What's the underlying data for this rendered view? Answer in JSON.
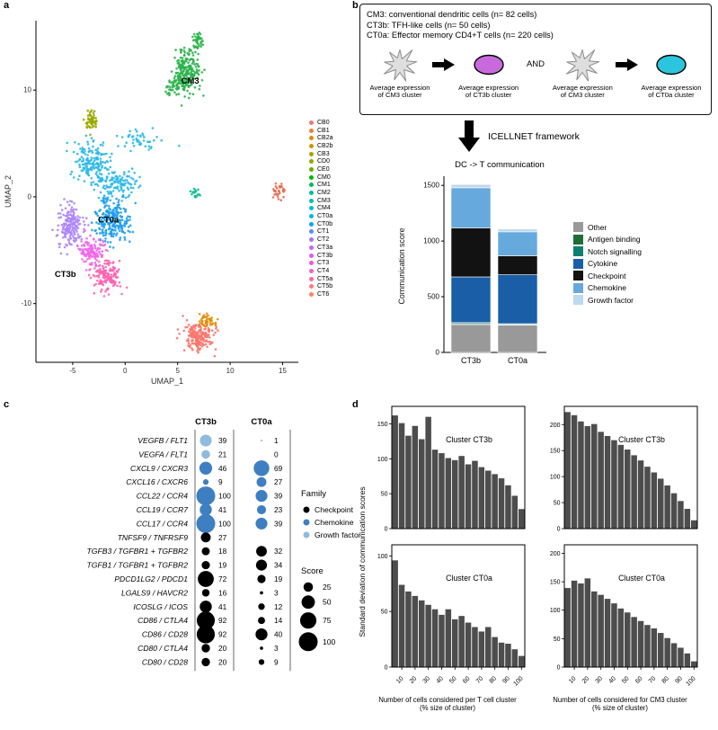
{
  "figure": {
    "panel_labels": {
      "a": "a",
      "b": "b",
      "c": "c",
      "d": "d"
    }
  },
  "panel_b": {
    "info_lines": [
      "CM3: conventional dendritic cells (n= 82 cells)",
      "CT3b: TFH-like cells (n= 50 cells)",
      "CT0a: Effector memory CD4+T cells (n= 220 cells)"
    ],
    "flow": [
      {
        "type": "cell",
        "label": "Average expression of CM3 cluster"
      },
      {
        "type": "arrow"
      },
      {
        "type": "ellipse",
        "color": "#C86ADB",
        "label": "Average expression of CT3b cluster"
      },
      {
        "type": "and",
        "text": "AND"
      },
      {
        "type": "cell",
        "label": "Average expression of CM3 cluster"
      },
      {
        "type": "arrow"
      },
      {
        "type": "ellipse",
        "color": "#2BC6DE",
        "label": "Average expression of CT0a cluster"
      }
    ],
    "framework_label": "ICELLNET framework"
  },
  "chart_data": [
    {
      "id": "umap",
      "type": "scatter",
      "xlabel": "UMAP_1",
      "ylabel": "UMAP_2",
      "xlim": [
        -8.5,
        16.5
      ],
      "ylim": [
        -15.5,
        16.5
      ],
      "x_ticks": [
        -5,
        0,
        5,
        10,
        15
      ],
      "y_ticks": [
        -10,
        0,
        10
      ],
      "annotations": [
        {
          "text": "CM3",
          "x": 6.2,
          "y": 10.6
        },
        {
          "text": "CT0a",
          "x": -1.6,
          "y": -2.4
        },
        {
          "text": "CT3b",
          "x": -5.7,
          "y": -7.5
        }
      ],
      "legend": [
        {
          "label": "CB0",
          "color": "#F8766D"
        },
        {
          "label": "CB1",
          "color": "#EC8239"
        },
        {
          "label": "CB2a",
          "color": "#DD8D00"
        },
        {
          "label": "CB2b",
          "color": "#C99800"
        },
        {
          "label": "CB3",
          "color": "#B0A100"
        },
        {
          "label": "CD0",
          "color": "#8FA900"
        },
        {
          "label": "CE0",
          "color": "#62B100"
        },
        {
          "label": "CM0",
          "color": "#00B702"
        },
        {
          "label": "CM1",
          "color": "#00BC5C"
        },
        {
          "label": "CM2",
          "color": "#00BF8C"
        },
        {
          "label": "CM3",
          "color": "#00C0B4"
        },
        {
          "label": "CM4",
          "color": "#00BDD4"
        },
        {
          "label": "CT0a",
          "color": "#00B5EC"
        },
        {
          "label": "CT0b",
          "color": "#00A7FD"
        },
        {
          "label": "CT1",
          "color": "#5E8BFF"
        },
        {
          "label": "CT2",
          "color": "#9C77FF"
        },
        {
          "label": "CT3a",
          "color": "#C763FF"
        },
        {
          "label": "CT3b",
          "color": "#E45BF1"
        },
        {
          "label": "CT3",
          "color": "#F356DC"
        },
        {
          "label": "CT4",
          "color": "#FC5DC1"
        },
        {
          "label": "CT5a",
          "color": "#FF69A2"
        },
        {
          "label": "CT5b",
          "color": "#FF7782"
        },
        {
          "label": "CT6",
          "color": "#FF8162"
        }
      ],
      "cluster_blobs": [
        {
          "name": "cm3-main",
          "color": "#2BB34B",
          "cx": 5.8,
          "cy": 11.8,
          "rx": 1.15,
          "ry": 1.8,
          "n": 230
        },
        {
          "name": "cm3-top",
          "color": "#2BB34B",
          "cx": 6.9,
          "cy": 14.6,
          "rx": 0.55,
          "ry": 0.75,
          "n": 40
        },
        {
          "name": "cm3-tail",
          "color": "#2BB34B",
          "cx": 4.6,
          "cy": 10.3,
          "rx": 0.8,
          "ry": 0.7,
          "n": 35
        },
        {
          "name": "olive-left",
          "color": "#9AA800",
          "cx": -3.3,
          "cy": 7.1,
          "rx": 0.55,
          "ry": 0.8,
          "n": 60
        },
        {
          "name": "sky-upper",
          "color": "#2BB8E8",
          "cx": -3.2,
          "cy": 3.2,
          "rx": 1.7,
          "ry": 1.7,
          "n": 170
        },
        {
          "name": "sky-mid",
          "color": "#2BB8E8",
          "cx": -0.9,
          "cy": 1.2,
          "rx": 1.9,
          "ry": 1.3,
          "n": 120
        },
        {
          "name": "sky-trail",
          "color": "#2BB8E8",
          "cx": 1.6,
          "cy": 5.3,
          "rx": 1.9,
          "ry": 1.1,
          "n": 45
        },
        {
          "name": "ct0a-blue",
          "color": "#1E9EF0",
          "cx": -1.2,
          "cy": -2.2,
          "rx": 1.5,
          "ry": 1.9,
          "n": 240
        },
        {
          "name": "ct3b-purple",
          "color": "#AD85FB",
          "cx": -5.2,
          "cy": -2.8,
          "rx": 1.05,
          "ry": 1.9,
          "n": 190
        },
        {
          "name": "magenta",
          "color": "#EF67E8",
          "cx": -3.2,
          "cy": -5.2,
          "rx": 1.0,
          "ry": 1.3,
          "n": 130
        },
        {
          "name": "pink-low",
          "color": "#FF63B0",
          "cx": -1.7,
          "cy": -7.4,
          "rx": 1.15,
          "ry": 1.35,
          "n": 150
        },
        {
          "name": "teal-small",
          "color": "#00BD8C",
          "cx": 6.7,
          "cy": 0.3,
          "rx": 0.4,
          "ry": 0.4,
          "n": 16
        },
        {
          "name": "orange-right",
          "color": "#E8694F",
          "cx": 14.6,
          "cy": 0.6,
          "rx": 0.5,
          "ry": 0.7,
          "n": 32
        },
        {
          "name": "salmon-bottom",
          "color": "#F8766D",
          "cx": 7.0,
          "cy": -13.0,
          "rx": 1.3,
          "ry": 1.25,
          "n": 190
        },
        {
          "name": "orange-bottom",
          "color": "#E09000",
          "cx": 7.8,
          "cy": -11.6,
          "rx": 0.7,
          "ry": 0.55,
          "n": 40
        }
      ]
    },
    {
      "id": "dc_t_stacked",
      "type": "bar",
      "stacked": true,
      "title": "DC -> T communication",
      "ylabel": "Communication score",
      "categories": [
        "CT3b",
        "CT0a"
      ],
      "ylim": [
        0,
        1550
      ],
      "y_ticks": [
        0,
        500,
        1000,
        1500
      ],
      "series": [
        {
          "name": "Other",
          "color": "#999999",
          "values": [
            250,
            245
          ]
        },
        {
          "name": "Antigen binding",
          "color": "#1E6E34",
          "values": [
            8,
            5
          ]
        },
        {
          "name": "Notch signalling",
          "color": "#0F7F72",
          "values": [
            10,
            8
          ]
        },
        {
          "name": "Cytokine",
          "color": "#1A5EA8",
          "values": [
            410,
            440
          ]
        },
        {
          "name": "Checkpoint",
          "color": "#121212",
          "values": [
            440,
            170
          ]
        },
        {
          "name": "Chemokine",
          "color": "#66A9DC",
          "values": [
            360,
            215
          ]
        },
        {
          "name": "Growth factor",
          "color": "#BFD9EE",
          "values": [
            30,
            25
          ]
        }
      ],
      "legend_order": [
        "Other",
        "Antigen binding",
        "Notch signalling",
        "Cytokine",
        "Checkpoint",
        "Chemokine",
        "Growth factor"
      ]
    },
    {
      "id": "lr_dotplot",
      "type": "scatter",
      "columns": [
        "CT3b",
        "CT0a"
      ],
      "family_legend_title": "Family",
      "families": [
        "Checkpoint",
        "Chemokine",
        "Growth factor"
      ],
      "family_colors": {
        "Checkpoint": "#000000",
        "Chemokine": "#3E7FC1",
        "Growth factor": "#8FBBDF"
      },
      "score_legend_title": "Score",
      "score_legend": [
        25,
        50,
        75,
        100
      ],
      "rows": [
        {
          "pair": "VEGFB / FLT1",
          "family": "Growth factor",
          "values": [
            39,
            1
          ]
        },
        {
          "pair": "VEGFA / FLT1",
          "family": "Growth factor",
          "values": [
            21,
            0
          ]
        },
        {
          "pair": "CXCL9 / CXCR3",
          "family": "Chemokine",
          "values": [
            46,
            69
          ]
        },
        {
          "pair": "CXCL16 / CXCR6",
          "family": "Chemokine",
          "values": [
            9,
            27
          ]
        },
        {
          "pair": "CCL22 / CCR4",
          "family": "Chemokine",
          "values": [
            100,
            39
          ]
        },
        {
          "pair": "CCL19 / CCR7",
          "family": "Chemokine",
          "values": [
            41,
            23
          ]
        },
        {
          "pair": "CCL17 / CCR4",
          "family": "Chemokine",
          "values": [
            100,
            39
          ]
        },
        {
          "pair": "TNFSF9 / TNFRSF9",
          "family": "Checkpoint",
          "values": [
            27,
            null
          ]
        },
        {
          "pair": "TGFB3 / TGFBR1 + TGFBR2",
          "family": "Checkpoint",
          "values": [
            18,
            32
          ]
        },
        {
          "pair": "TGFB1 / TGFBR1 + TGFBR2",
          "family": "Checkpoint",
          "values": [
            19,
            34
          ]
        },
        {
          "pair": "PDCD1LG2 / PDCD1",
          "family": "Checkpoint",
          "values": [
            72,
            19
          ]
        },
        {
          "pair": "LGALS9 / HAVCR2",
          "family": "Checkpoint",
          "values": [
            16,
            3
          ]
        },
        {
          "pair": "ICOSLG / ICOS",
          "family": "Checkpoint",
          "values": [
            41,
            12
          ]
        },
        {
          "pair": "CD86 / CTLA4",
          "family": "Checkpoint",
          "values": [
            92,
            14
          ]
        },
        {
          "pair": "CD86 / CD28",
          "family": "Checkpoint",
          "values": [
            92,
            40
          ]
        },
        {
          "pair": "CD80 / CTLA4",
          "family": "Checkpoint",
          "values": [
            20,
            3
          ]
        },
        {
          "pair": "CD80 / CD28",
          "family": "Checkpoint",
          "values": [
            20,
            9
          ]
        }
      ]
    },
    {
      "id": "sd_histograms",
      "type": "bar",
      "ylabel": "Standard deviation of communication scores",
      "bar_color": "#4D4D4D",
      "x": [
        5,
        10,
        15,
        20,
        25,
        30,
        35,
        40,
        45,
        50,
        55,
        60,
        65,
        70,
        75,
        80,
        85,
        90,
        95,
        100
      ],
      "x_ticks": [
        10,
        20,
        30,
        40,
        50,
        60,
        70,
        80,
        90,
        100
      ],
      "xlabels": {
        "t": [
          "Number of cells considered per T cell cluster",
          "(% size of cluster)"
        ],
        "cm3": [
          "Number of cells considered for CM3 cluster",
          "(% size of cluster)"
        ]
      },
      "charts": [
        {
          "title": "Cluster CT3b",
          "x_group": "t",
          "ylim": [
            0,
            175
          ],
          "y_ticks": [
            0,
            50,
            100,
            150
          ],
          "values": [
            162,
            151,
            133,
            147,
            128,
            160,
            113,
            108,
            101,
            98,
            104,
            92,
            97,
            88,
            83,
            78,
            72,
            62,
            47,
            28
          ]
        },
        {
          "title": "Cluster CT3b",
          "x_group": "cm3",
          "ylim": [
            0,
            235
          ],
          "y_ticks": [
            0,
            50,
            100,
            150,
            200
          ],
          "values": [
            224,
            218,
            206,
            197,
            201,
            186,
            178,
            170,
            161,
            152,
            141,
            131,
            119,
            108,
            96,
            83,
            68,
            53,
            38,
            16
          ]
        },
        {
          "title": "Cluster CT0a",
          "x_group": "t",
          "ylim": [
            0,
            110
          ],
          "y_ticks": [
            0,
            50,
            100
          ],
          "values": [
            96,
            74,
            68,
            64,
            60,
            56,
            52,
            47,
            52,
            43,
            46,
            40,
            36,
            32,
            36,
            27,
            22,
            21,
            16,
            10
          ]
        },
        {
          "title": "Cluster CT0a",
          "x_group": "cm3",
          "ylim": [
            0,
            215
          ],
          "y_ticks": [
            0,
            50,
            100,
            150,
            200
          ],
          "values": [
            139,
            152,
            147,
            156,
            133,
            127,
            120,
            112,
            103,
            96,
            88,
            81,
            74,
            68,
            60,
            51,
            42,
            34,
            24,
            10
          ]
        }
      ]
    }
  ]
}
